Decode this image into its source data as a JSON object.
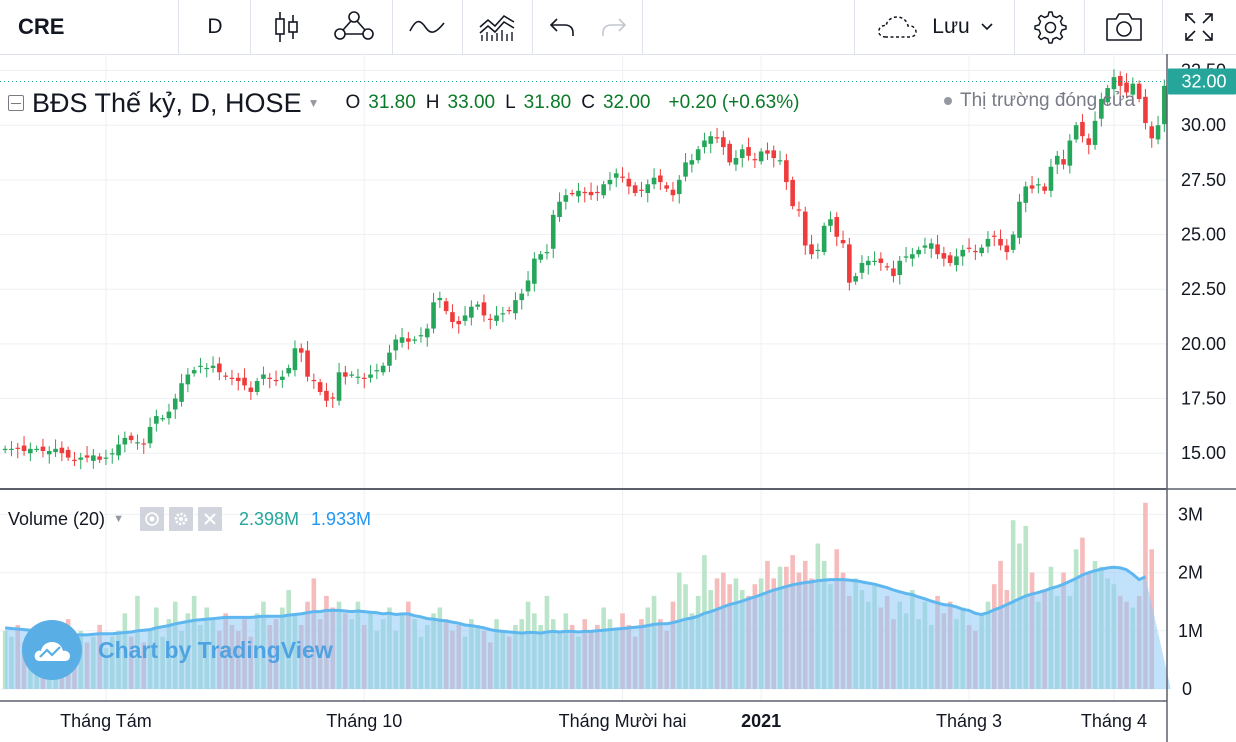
{
  "toolbar": {
    "symbol": "CRE",
    "interval": "D",
    "save_label": "Lưu",
    "icons": [
      "candles-icon",
      "indicators-icon",
      "compare-icon",
      "templates-icon",
      "undo-icon",
      "redo-icon",
      "cloud-icon",
      "chevron-down-icon",
      "gear-icon",
      "camera-icon",
      "fullscreen-icon"
    ]
  },
  "legend": {
    "title": "BĐS Thế kỷ, D, HOSE",
    "o_label": "O",
    "o": "31.80",
    "h_label": "H",
    "h": "33.00",
    "l_label": "L",
    "l": "31.80",
    "c_label": "C",
    "c": "32.00",
    "change": "+0.20 (+0.63%)",
    "market_status": "Thị trường đóng cửa",
    "last_price_label": "32.00"
  },
  "volume_legend": {
    "name": "Volume (20)",
    "value": "2.398M",
    "ma_value": "1.933M"
  },
  "watermark": "Chart by TradingView",
  "colors": {
    "up": "#26a65b",
    "down": "#ef3b3b",
    "vol_up": "#b7e4c7",
    "vol_down": "#f6b7b7",
    "vol_ma_fill": "#90caf9",
    "vol_ma_line": "#5eb7ee",
    "last_price_bg": "#26a69a",
    "grid": "#eef0f3"
  },
  "chart_data": {
    "type": "candlestick",
    "price_axis": {
      "min": 13.5,
      "max": 32.8,
      "ticks": [
        "15.00",
        "17.50",
        "20.00",
        "22.50",
        "25.00",
        "27.50",
        "30.00",
        "32.50"
      ]
    },
    "volume_axis": {
      "max": 3.35,
      "ticks": [
        "0",
        "1M",
        "2M",
        "3M"
      ]
    },
    "time_axis": [
      {
        "label": "Tháng Tám",
        "index": 16
      },
      {
        "label": "Tháng 10",
        "index": 57
      },
      {
        "label": "Tháng Mười hai",
        "index": 98
      },
      {
        "label": "2021",
        "index": 120,
        "bold": true
      },
      {
        "label": "Tháng 3",
        "index": 153
      },
      {
        "label": "Tháng 4",
        "index": 176
      }
    ],
    "closes": [
      15.2,
      15.2,
      15.2,
      15.1,
      15.2,
      15.2,
      15.1,
      15.1,
      15.2,
      15.0,
      14.8,
      14.7,
      14.8,
      14.8,
      14.9,
      14.7,
      14.8,
      15.0,
      15.4,
      15.7,
      15.6,
      15.5,
      15.4,
      16.2,
      16.7,
      16.6,
      16.9,
      17.5,
      18.2,
      18.6,
      18.8,
      19.0,
      18.9,
      19.0,
      18.7,
      18.5,
      18.4,
      18.3,
      18.1,
      17.8,
      18.3,
      18.6,
      18.4,
      18.3,
      18.5,
      18.9,
      19.8,
      19.6,
      18.5,
      18.3,
      17.8,
      17.4,
      17.5,
      18.7,
      18.5,
      18.6,
      18.5,
      18.4,
      18.6,
      18.8,
      19.0,
      19.6,
      20.2,
      20.3,
      20.1,
      20.2,
      20.4,
      20.7,
      21.9,
      22.1,
      21.5,
      21.0,
      20.9,
      21.3,
      21.7,
      21.8,
      21.3,
      21.1,
      21.3,
      21.4,
      21.5,
      22.0,
      22.3,
      22.9,
      23.9,
      24.1,
      24.2,
      25.9,
      26.5,
      26.8,
      26.9,
      27.0,
      26.9,
      26.8,
      26.9,
      27.3,
      27.5,
      27.8,
      27.6,
      27.2,
      26.9,
      27.0,
      27.3,
      27.6,
      27.4,
      27.1,
      26.8,
      27.5,
      28.3,
      28.4,
      28.9,
      29.3,
      29.5,
      29.4,
      29.0,
      28.3,
      28.5,
      28.9,
      28.6,
      28.4,
      28.8,
      28.7,
      28.5,
      28.4,
      27.4,
      26.3,
      26.1,
      24.5,
      24.1,
      24.3,
      25.4,
      25.7,
      24.9,
      24.6,
      22.8,
      23.1,
      23.7,
      23.8,
      23.8,
      23.7,
      23.5,
      23.1,
      23.8,
      24.0,
      24.1,
      24.3,
      24.5,
      24.6,
      24.1,
      23.9,
      23.7,
      24.0,
      24.3,
      24.4,
      24.2,
      24.4,
      24.8,
      24.9,
      24.5,
      24.2,
      25.0,
      26.5,
      27.2,
      27.1,
      27.3,
      27.0,
      28.1,
      28.6,
      28.2,
      29.3,
      30.0,
      29.5,
      29.1,
      30.2,
      31.2,
      31.7,
      32.2,
      31.8,
      31.5,
      31.9,
      31.2,
      30.1,
      29.4,
      30.0,
      31.8,
      32.0
    ],
    "volumes": [
      1.0,
      0.9,
      1.1,
      0.8,
      1.0,
      0.9,
      0.7,
      1.1,
      1.0,
      0.8,
      1.2,
      0.9,
      1.0,
      0.8,
      0.9,
      1.1,
      0.7,
      0.9,
      1.0,
      1.3,
      0.9,
      1.6,
      0.8,
      1.0,
      1.4,
      0.9,
      1.2,
      1.5,
      1.0,
      1.3,
      1.6,
      1.1,
      1.4,
      1.2,
      1.0,
      1.3,
      1.1,
      1.0,
      1.2,
      0.9,
      1.3,
      1.5,
      1.1,
      1.2,
      1.4,
      1.7,
      1.3,
      1.1,
      1.5,
      1.9,
      1.2,
      1.6,
      1.4,
      1.5,
      1.3,
      1.2,
      1.5,
      1.1,
      1.3,
      1.0,
      1.2,
      1.4,
      1.0,
      1.3,
      1.5,
      1.2,
      0.9,
      1.1,
      1.3,
      1.4,
      1.2,
      1.0,
      1.1,
      0.9,
      1.2,
      1.1,
      1.0,
      0.8,
      1.2,
      1.0,
      0.9,
      1.1,
      1.2,
      1.5,
      1.3,
      1.1,
      1.6,
      1.2,
      1.0,
      1.3,
      1.1,
      0.9,
      1.2,
      1.0,
      1.1,
      1.4,
      1.2,
      1.0,
      1.3,
      1.1,
      0.9,
      1.2,
      1.4,
      1.6,
      1.2,
      1.0,
      1.5,
      2.0,
      1.8,
      1.3,
      1.6,
      2.3,
      1.7,
      1.9,
      2.0,
      1.8,
      1.9,
      1.7,
      1.6,
      1.8,
      1.9,
      2.2,
      1.9,
      2.1,
      2.1,
      2.3,
      2.0,
      2.2,
      1.9,
      2.5,
      2.2,
      1.8,
      2.4,
      2.0,
      1.6,
      1.9,
      1.7,
      1.5,
      1.8,
      1.4,
      1.6,
      1.2,
      1.5,
      1.3,
      1.7,
      1.2,
      1.5,
      1.1,
      1.6,
      1.3,
      1.5,
      1.2,
      1.4,
      1.1,
      1.0,
      1.3,
      1.5,
      1.8,
      2.2,
      1.7,
      2.9,
      2.5,
      2.8,
      2.0,
      1.5,
      1.7,
      2.1,
      1.6,
      2.0,
      1.6,
      2.4,
      2.6,
      2.0,
      2.2,
      2.1,
      1.9,
      1.8,
      1.6,
      1.5,
      1.4,
      1.6,
      3.2,
      2.4
    ],
    "volume_ma": [
      1.05,
      1.04,
      1.03,
      1.02,
      1.01,
      1.0,
      0.99,
      0.98,
      0.96,
      0.95,
      0.94,
      0.93,
      0.93,
      0.93,
      0.94,
      0.95,
      0.95,
      0.95,
      0.96,
      0.97,
      0.98,
      1.0,
      1.01,
      1.02,
      1.05,
      1.07,
      1.09,
      1.12,
      1.14,
      1.16,
      1.18,
      1.19,
      1.2,
      1.21,
      1.22,
      1.23,
      1.23,
      1.23,
      1.23,
      1.23,
      1.24,
      1.25,
      1.25,
      1.25,
      1.25,
      1.27,
      1.28,
      1.29,
      1.31,
      1.33,
      1.33,
      1.35,
      1.35,
      1.35,
      1.34,
      1.33,
      1.34,
      1.33,
      1.32,
      1.31,
      1.29,
      1.3,
      1.28,
      1.29,
      1.29,
      1.26,
      1.24,
      1.21,
      1.2,
      1.18,
      1.17,
      1.15,
      1.13,
      1.1,
      1.09,
      1.07,
      1.05,
      1.02,
      1.0,
      0.99,
      0.98,
      0.97,
      0.96,
      0.97,
      0.97,
      0.96,
      0.98,
      0.99,
      0.98,
      0.99,
      0.99,
      0.98,
      0.99,
      0.99,
      1.0,
      1.01,
      1.02,
      1.03,
      1.04,
      1.05,
      1.06,
      1.07,
      1.09,
      1.11,
      1.12,
      1.12,
      1.14,
      1.17,
      1.2,
      1.22,
      1.25,
      1.3,
      1.33,
      1.37,
      1.41,
      1.45,
      1.48,
      1.51,
      1.55,
      1.58,
      1.62,
      1.66,
      1.7,
      1.73,
      1.76,
      1.79,
      1.81,
      1.83,
      1.84,
      1.86,
      1.87,
      1.88,
      1.88,
      1.88,
      1.87,
      1.86,
      1.84,
      1.82,
      1.8,
      1.77,
      1.74,
      1.7,
      1.67,
      1.64,
      1.62,
      1.58,
      1.55,
      1.51,
      1.48,
      1.45,
      1.44,
      1.41,
      1.37,
      1.35,
      1.3,
      1.28,
      1.31,
      1.36,
      1.4,
      1.45,
      1.5,
      1.55,
      1.6,
      1.63,
      1.66,
      1.69,
      1.73,
      1.76,
      1.8,
      1.85,
      1.9,
      1.96,
      2.0,
      2.03,
      2.06,
      2.08,
      2.09,
      2.08,
      2.05,
      1.97,
      1.88,
      1.93
    ]
  }
}
